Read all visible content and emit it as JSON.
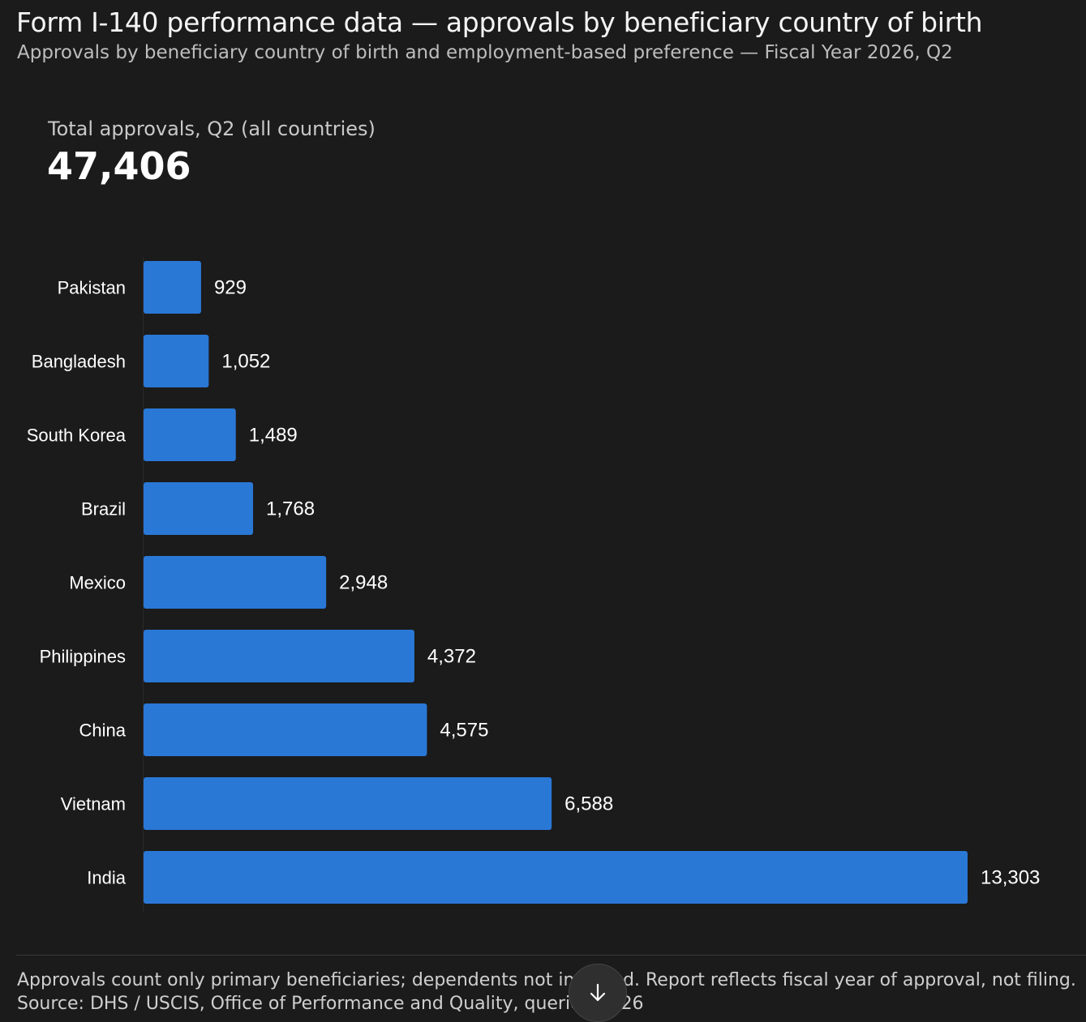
{
  "header": {
    "title": "Form I-140 performance data — approvals by beneficiary country of birth",
    "subtitle": "Approvals by beneficiary country of birth and employment-based preference — Fiscal Year 2026, Q2"
  },
  "kpi": {
    "label": "Total approvals, Q2 (all countries)",
    "value": "47,406"
  },
  "chart_data": {
    "type": "bar",
    "orientation": "horizontal",
    "categories": [
      "Pakistan",
      "Bangladesh",
      "South Korea",
      "Brazil",
      "Mexico",
      "Philippines",
      "China",
      "Vietnam",
      "India"
    ],
    "values": [
      929,
      1052,
      1489,
      1768,
      2948,
      4372,
      4575,
      6588,
      13303
    ],
    "value_labels": [
      "929",
      "1,052",
      "1,489",
      "1,768",
      "2,948",
      "4,372",
      "4,575",
      "6,588",
      "13,303"
    ],
    "bar_color": "#2a78d6",
    "grid": false,
    "legend": "none"
  },
  "footer": {
    "note_line1": "Approvals count only primary beneficiaries; dependents not included. Report reflects fiscal year of approval, not filing.",
    "note_line2": "Source: DHS / USCIS, Office of Performance and Quality, queried 2026"
  },
  "scroll_button": {
    "icon": "arrow-down-icon"
  }
}
